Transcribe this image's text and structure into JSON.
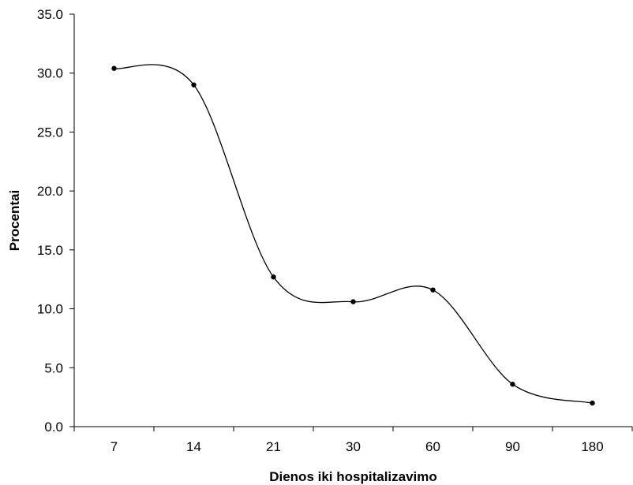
{
  "chart_data": {
    "type": "line",
    "title": "",
    "xlabel": "Dienos iki hospitalizavimo",
    "ylabel": "Procentai",
    "categories": [
      "7",
      "14",
      "21",
      "30",
      "60",
      "90",
      "180"
    ],
    "series": [
      {
        "values": [
          30.4,
          29.0,
          12.7,
          10.6,
          11.6,
          3.6,
          2.0
        ]
      }
    ],
    "ylim": [
      0,
      35
    ],
    "yticks": [
      "0.0",
      "5.0",
      "10.0",
      "15.0",
      "20.0",
      "25.0",
      "30.0",
      "35.0"
    ],
    "grid": false,
    "legend": "none",
    "line_color": "#000000",
    "smooth": true,
    "markers": "dot"
  }
}
